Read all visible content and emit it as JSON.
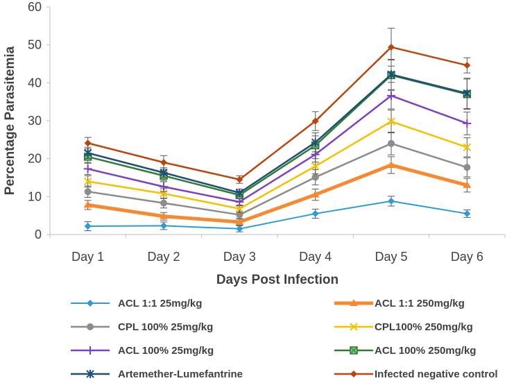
{
  "chart_data": {
    "type": "line",
    "title": "",
    "xlabel": "Days Post Infection",
    "ylabel": "Percentage Parasitemia",
    "categories": [
      "Day 1",
      "Day 2",
      "Day 3",
      "Day 4",
      "Day 5",
      "Day 6"
    ],
    "ylim": [
      0,
      60
    ],
    "yticks": [
      0,
      10,
      20,
      30,
      40,
      50,
      60
    ],
    "grid": false,
    "legend_position": "bottom",
    "series": [
      {
        "name": "ACL 1:1 25mg/kg",
        "color": "#2e9bd6",
        "marker": "diamond",
        "width": 2,
        "values": [
          2.2,
          2.3,
          1.5,
          5.5,
          8.8,
          5.5
        ],
        "errors": [
          1.2,
          1.0,
          0.8,
          1.2,
          1.3,
          1.0
        ]
      },
      {
        "name": "ACL 1:1 250mg/kg",
        "color": "#f58a33",
        "marker": "triangle",
        "width": 5,
        "values": [
          7.8,
          4.8,
          3.3,
          10.5,
          18.3,
          13.0
        ],
        "errors": [
          1.2,
          1.0,
          0.8,
          1.5,
          2.2,
          1.8
        ]
      },
      {
        "name": "CPL 100% 25mg/kg",
        "color": "#8c8c8c",
        "marker": "circle",
        "width": 2.5,
        "values": [
          11.3,
          8.3,
          5.2,
          15.1,
          24.0,
          17.7
        ],
        "errors": [
          1.5,
          1.3,
          1.0,
          2.0,
          3.0,
          2.5
        ]
      },
      {
        "name": "CPL100% 250mg/kg",
        "color": "#f5c000",
        "marker": "x",
        "width": 2.5,
        "values": [
          14.0,
          10.8,
          6.8,
          18.0,
          29.8,
          23.0
        ],
        "errors": [
          1.5,
          1.3,
          1.0,
          2.0,
          3.0,
          2.5
        ]
      },
      {
        "name": "ACL 100% 25mg/kg",
        "color": "#7f3fbf",
        "marker": "plus",
        "width": 2.5,
        "values": [
          17.3,
          12.6,
          8.6,
          21.1,
          36.6,
          29.3
        ],
        "errors": [
          1.5,
          1.3,
          1.0,
          2.0,
          3.5,
          3.0
        ]
      },
      {
        "name": "ACL 100% 250mg/kg",
        "color": "#2e7d32",
        "marker": "square",
        "width": 2.5,
        "values": [
          20.5,
          15.5,
          10.4,
          23.5,
          42.0,
          37.0
        ],
        "errors": [
          1.5,
          1.3,
          1.0,
          2.5,
          4.0,
          4.0
        ]
      },
      {
        "name": "Artemether-Lumefantrine",
        "color": "#1f4e79",
        "marker": "asterisk",
        "width": 2.5,
        "values": [
          21.5,
          16.3,
          11.0,
          24.3,
          42.2,
          37.2
        ],
        "errors": [
          1.5,
          1.3,
          1.0,
          2.5,
          4.0,
          4.0
        ]
      },
      {
        "name": "Infected negative control",
        "color": "#b8470f",
        "marker": "diamond",
        "width": 2.5,
        "values": [
          24.1,
          19.0,
          14.5,
          29.9,
          49.4,
          44.6
        ],
        "errors": [
          1.5,
          1.8,
          1.0,
          2.5,
          5.0,
          2.0
        ]
      }
    ]
  }
}
